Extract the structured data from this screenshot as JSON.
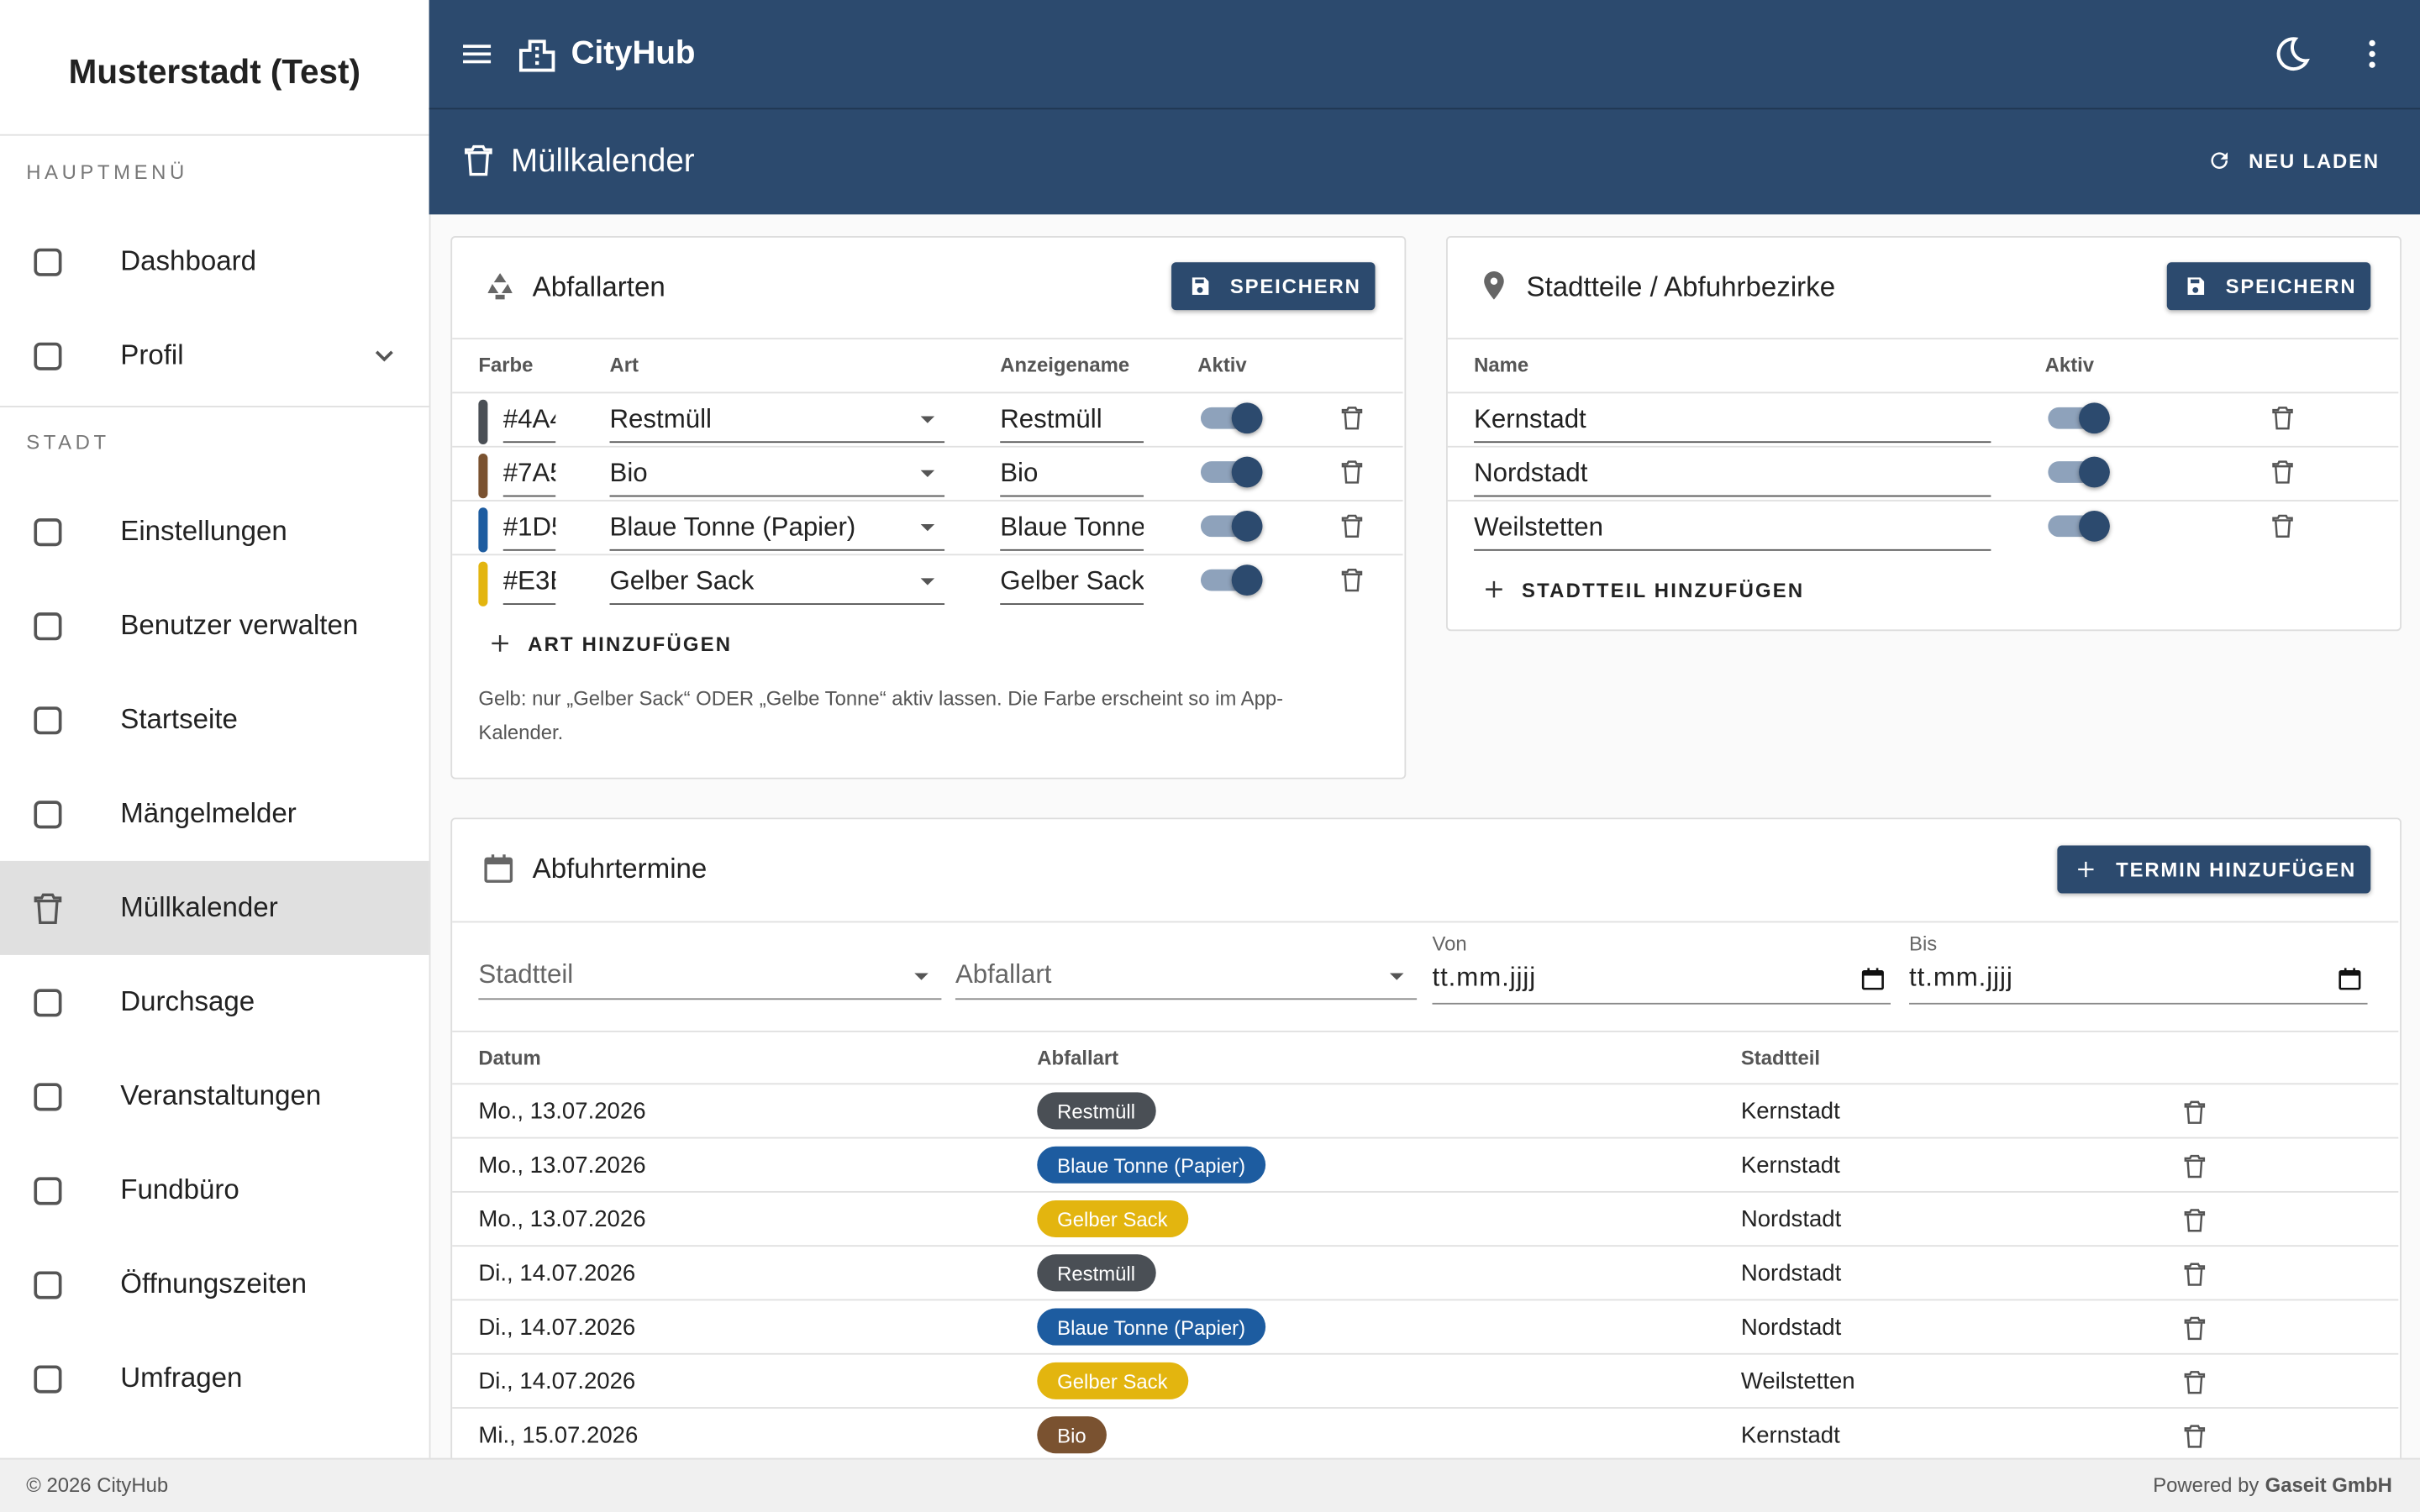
{
  "sidebar": {
    "title": "Musterstadt (Test)",
    "sections": [
      {
        "heading": "HAUPTMENÜ",
        "items": [
          "Dashboard",
          "Profil"
        ]
      },
      {
        "heading": "STADT",
        "items": [
          "Einstellungen",
          "Benutzer verwalten",
          "Startseite",
          "Mängelmelder",
          "Müllkalender",
          "Durchsage",
          "Veranstaltungen",
          "Fundbüro",
          "Öffnungszeiten",
          "Umfragen"
        ]
      }
    ],
    "active": "Müllkalender"
  },
  "topbar": {
    "brand": "CityHub"
  },
  "page_header": {
    "title": "Müllkalender",
    "reload": "NEU LADEN"
  },
  "waste_types": {
    "title": "Abfallarten",
    "save": "SPEICHERN",
    "columns": [
      "Farbe",
      "Art",
      "Anzeigename",
      "Aktiv"
    ],
    "rows": [
      {
        "code": "#4A4",
        "color": "#4a4f55",
        "type": "Restmüll",
        "display": "Restmüll",
        "active": true
      },
      {
        "code": "#7A5",
        "color": "#7a5230",
        "type": "Bio",
        "display": "Bio",
        "active": true
      },
      {
        "code": "#1D5",
        "color": "#1d5ca0",
        "type": "Blaue Tonne (Papier)",
        "display": "Blaue Tonne",
        "active": true
      },
      {
        "code": "#E3B",
        "color": "#e3b50f",
        "type": "Gelber Sack",
        "display": "Gelber Sack",
        "active": true
      }
    ],
    "add": "ART HINZUFÜGEN",
    "note": "Gelb: nur „Gelber Sack“ ODER „Gelbe Tonne“ aktiv lassen. Die Farbe erscheint so im App-Kalender."
  },
  "districts": {
    "title": "Stadtteile / Abfuhrbezirke",
    "save": "SPEICHERN",
    "columns": [
      "Name",
      "Aktiv"
    ],
    "rows": [
      {
        "name": "Kernstadt",
        "active": true
      },
      {
        "name": "Nordstadt",
        "active": true
      },
      {
        "name": "Weilstetten",
        "active": true
      }
    ],
    "add": "STADTTEIL HINZUFÜGEN"
  },
  "schedule": {
    "title": "Abfuhrtermine",
    "add": "TERMIN HINZUFÜGEN",
    "filters": {
      "district": "Stadtteil",
      "type": "Abfallart",
      "from_label": "Von",
      "from": "tt.mm.jjjj",
      "to_label": "Bis",
      "to": "tt.mm.jjjj"
    },
    "columns": [
      "Datum",
      "Abfallart",
      "Stadtteil"
    ],
    "rows": [
      {
        "date": "Mo., 13.07.2026",
        "type": "Restmüll",
        "color": "#4a4f55",
        "district": "Kernstadt"
      },
      {
        "date": "Mo., 13.07.2026",
        "type": "Blaue Tonne (Papier)",
        "color": "#1d5ca0",
        "district": "Kernstadt"
      },
      {
        "date": "Mo., 13.07.2026",
        "type": "Gelber Sack",
        "color": "#e3b50f",
        "district": "Nordstadt"
      },
      {
        "date": "Di., 14.07.2026",
        "type": "Restmüll",
        "color": "#4a4f55",
        "district": "Nordstadt"
      },
      {
        "date": "Di., 14.07.2026",
        "type": "Blaue Tonne (Papier)",
        "color": "#1d5ca0",
        "district": "Nordstadt"
      },
      {
        "date": "Di., 14.07.2026",
        "type": "Gelber Sack",
        "color": "#e3b50f",
        "district": "Weilstetten"
      },
      {
        "date": "Mi., 15.07.2026",
        "type": "Bio",
        "color": "#7a5230",
        "district": "Kernstadt"
      }
    ]
  },
  "footer": {
    "copyright": "© 2026 CityHub",
    "powered": "Powered by",
    "company": "Gaseit GmbH"
  }
}
